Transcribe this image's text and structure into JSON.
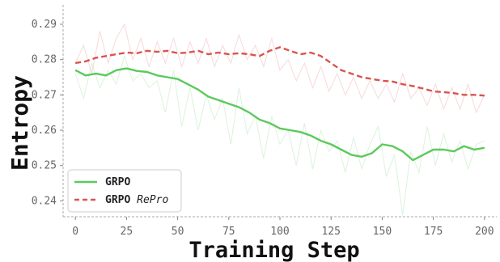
{
  "chart_data": {
    "type": "line",
    "xlabel": "Training Step",
    "ylabel": "Entropy",
    "xlim": [
      -6,
      206
    ],
    "ylim": [
      0.2355,
      0.2955
    ],
    "xticks": [
      0,
      25,
      50,
      75,
      100,
      125,
      150,
      175,
      200
    ],
    "yticks": [
      0.24,
      0.25,
      0.26,
      0.27,
      0.28,
      0.29
    ],
    "grid": false,
    "legend": {
      "placement": "bottom-left"
    },
    "series": [
      {
        "name": "GRPO",
        "name_suffix": "",
        "color": "#5cc95c",
        "style": "solid",
        "x": [
          0,
          5,
          10,
          15,
          20,
          25,
          30,
          35,
          40,
          45,
          50,
          55,
          60,
          65,
          70,
          75,
          80,
          85,
          90,
          95,
          100,
          105,
          110,
          115,
          120,
          125,
          130,
          135,
          140,
          145,
          150,
          155,
          160,
          165,
          170,
          175,
          180,
          185,
          190,
          195,
          200
        ],
        "values": [
          0.277,
          0.2755,
          0.276,
          0.2755,
          0.277,
          0.2775,
          0.2768,
          0.2765,
          0.2755,
          0.275,
          0.2745,
          0.273,
          0.2715,
          0.2695,
          0.2685,
          0.2675,
          0.2665,
          0.265,
          0.263,
          0.262,
          0.2605,
          0.26,
          0.2595,
          0.2585,
          0.257,
          0.256,
          0.2545,
          0.253,
          0.2525,
          0.2535,
          0.256,
          0.2555,
          0.254,
          0.2515,
          0.253,
          0.2545,
          0.2545,
          0.254,
          0.2555,
          0.2545,
          0.255
        ],
        "raw_x": [
          0,
          4,
          8,
          12,
          16,
          20,
          24,
          28,
          32,
          36,
          40,
          44,
          48,
          52,
          56,
          60,
          64,
          68,
          72,
          76,
          80,
          84,
          88,
          92,
          96,
          100,
          104,
          108,
          112,
          116,
          120,
          124,
          128,
          132,
          136,
          140,
          144,
          148,
          152,
          156,
          160,
          164,
          168,
          172,
          176,
          180,
          184,
          188,
          192,
          196,
          200
        ],
        "raw_values": [
          0.276,
          0.269,
          0.279,
          0.272,
          0.277,
          0.273,
          0.281,
          0.274,
          0.276,
          0.272,
          0.274,
          0.265,
          0.277,
          0.261,
          0.272,
          0.26,
          0.27,
          0.263,
          0.269,
          0.256,
          0.272,
          0.259,
          0.264,
          0.252,
          0.264,
          0.256,
          0.26,
          0.25,
          0.262,
          0.249,
          0.26,
          0.254,
          0.257,
          0.248,
          0.258,
          0.249,
          0.256,
          0.261,
          0.247,
          0.253,
          0.236,
          0.254,
          0.248,
          0.261,
          0.25,
          0.259,
          0.251,
          0.257,
          0.249,
          0.256,
          0.257
        ]
      },
      {
        "name": "GRPO",
        "name_suffix": "RePro",
        "color": "#d9534f",
        "style": "dashed",
        "x": [
          0,
          5,
          10,
          15,
          20,
          25,
          30,
          35,
          40,
          45,
          50,
          55,
          60,
          65,
          70,
          75,
          80,
          85,
          90,
          95,
          100,
          105,
          110,
          115,
          120,
          125,
          130,
          135,
          140,
          145,
          150,
          155,
          160,
          165,
          170,
          175,
          180,
          185,
          190,
          195,
          200
        ],
        "values": [
          0.279,
          0.2795,
          0.2805,
          0.281,
          0.2815,
          0.282,
          0.2818,
          0.2825,
          0.2822,
          0.2825,
          0.2818,
          0.282,
          0.2825,
          0.2815,
          0.282,
          0.2815,
          0.2818,
          0.2815,
          0.281,
          0.2825,
          0.2835,
          0.2825,
          0.2815,
          0.282,
          0.281,
          0.279,
          0.277,
          0.276,
          0.275,
          0.2745,
          0.274,
          0.2738,
          0.273,
          0.2725,
          0.2718,
          0.271,
          0.2708,
          0.2705,
          0.27,
          0.27,
          0.2698
        ],
        "raw_x": [
          0,
          4,
          8,
          12,
          16,
          20,
          24,
          28,
          32,
          36,
          40,
          44,
          48,
          52,
          56,
          60,
          64,
          68,
          72,
          76,
          80,
          84,
          88,
          92,
          96,
          100,
          104,
          108,
          112,
          116,
          120,
          124,
          128,
          132,
          136,
          140,
          144,
          148,
          152,
          156,
          160,
          164,
          168,
          172,
          176,
          180,
          184,
          188,
          192,
          196,
          200
        ],
        "raw_values": [
          0.279,
          0.284,
          0.276,
          0.288,
          0.279,
          0.286,
          0.29,
          0.28,
          0.286,
          0.278,
          0.285,
          0.279,
          0.286,
          0.278,
          0.285,
          0.279,
          0.286,
          0.278,
          0.284,
          0.279,
          0.287,
          0.28,
          0.284,
          0.278,
          0.286,
          0.277,
          0.28,
          0.274,
          0.279,
          0.272,
          0.278,
          0.271,
          0.276,
          0.27,
          0.275,
          0.269,
          0.274,
          0.269,
          0.273,
          0.268,
          0.276,
          0.269,
          0.272,
          0.267,
          0.273,
          0.266,
          0.272,
          0.266,
          0.273,
          0.265,
          0.27
        ]
      }
    ]
  }
}
